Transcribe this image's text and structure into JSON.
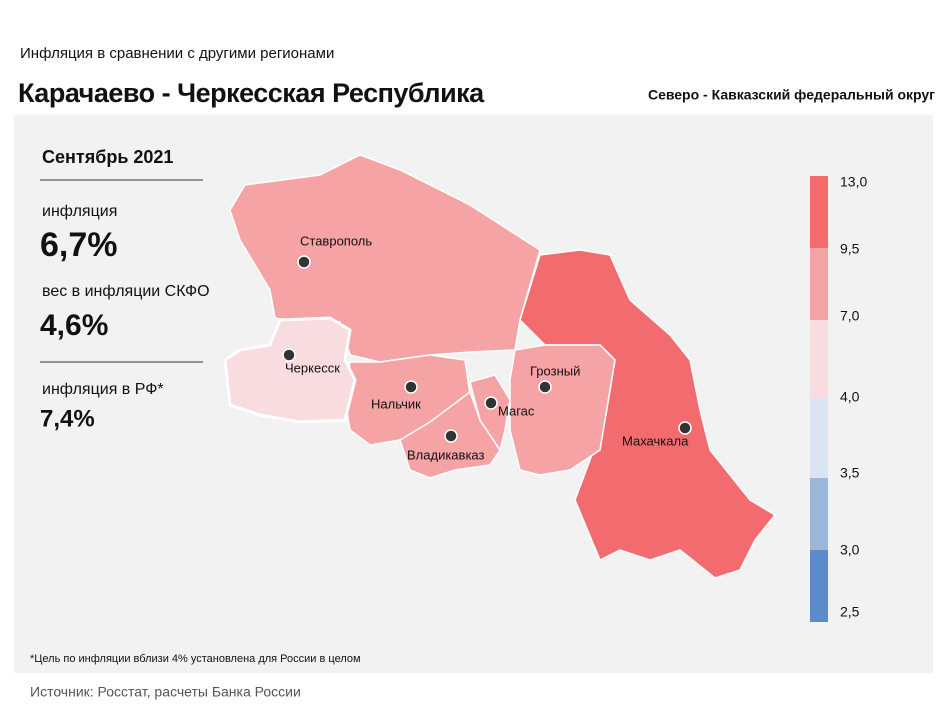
{
  "header": {
    "subtitle": "Инфляция  в сравнении  с другими  регионами",
    "title": "Карачаево - Черкесская Республика",
    "district": "Северо - Кавказский федеральный округ"
  },
  "panel": {
    "period": "Сентябрь 2021",
    "items": [
      {
        "label": "инфляция",
        "value": "6,7%"
      },
      {
        "label": "вес в инфляции  СКФО",
        "value": "4,6%"
      },
      {
        "label": "инфляция  в РФ*",
        "value": "7,4%"
      }
    ]
  },
  "map": {
    "cities": [
      "Ставрополь",
      "Черкесск",
      "Нальчик",
      "Магас",
      "Владикавказ",
      "Грозный",
      "Махачкала"
    ]
  },
  "legend": {
    "ticks": [
      {
        "value": 13.0,
        "label": "13,0"
      },
      {
        "value": 9.5,
        "label": "9,5"
      },
      {
        "value": 7.0,
        "label": "7,0"
      },
      {
        "value": 4.0,
        "label": "4,0"
      },
      {
        "value": 3.5,
        "label": "3,5"
      },
      {
        "value": 3.0,
        "label": "3,0"
      },
      {
        "value": 2.5,
        "label": "2,5"
      }
    ],
    "colors": [
      "#f26b6e",
      "#f6a3a5",
      "#f9dcdf",
      "#dbe4f3",
      "#9bb6db",
      "#5b8bc9"
    ]
  },
  "footnote": "*Цель по инфляции вблизи 4% установлена для России в целом",
  "source": "Источник: Росстат, расчеты Банка России"
}
